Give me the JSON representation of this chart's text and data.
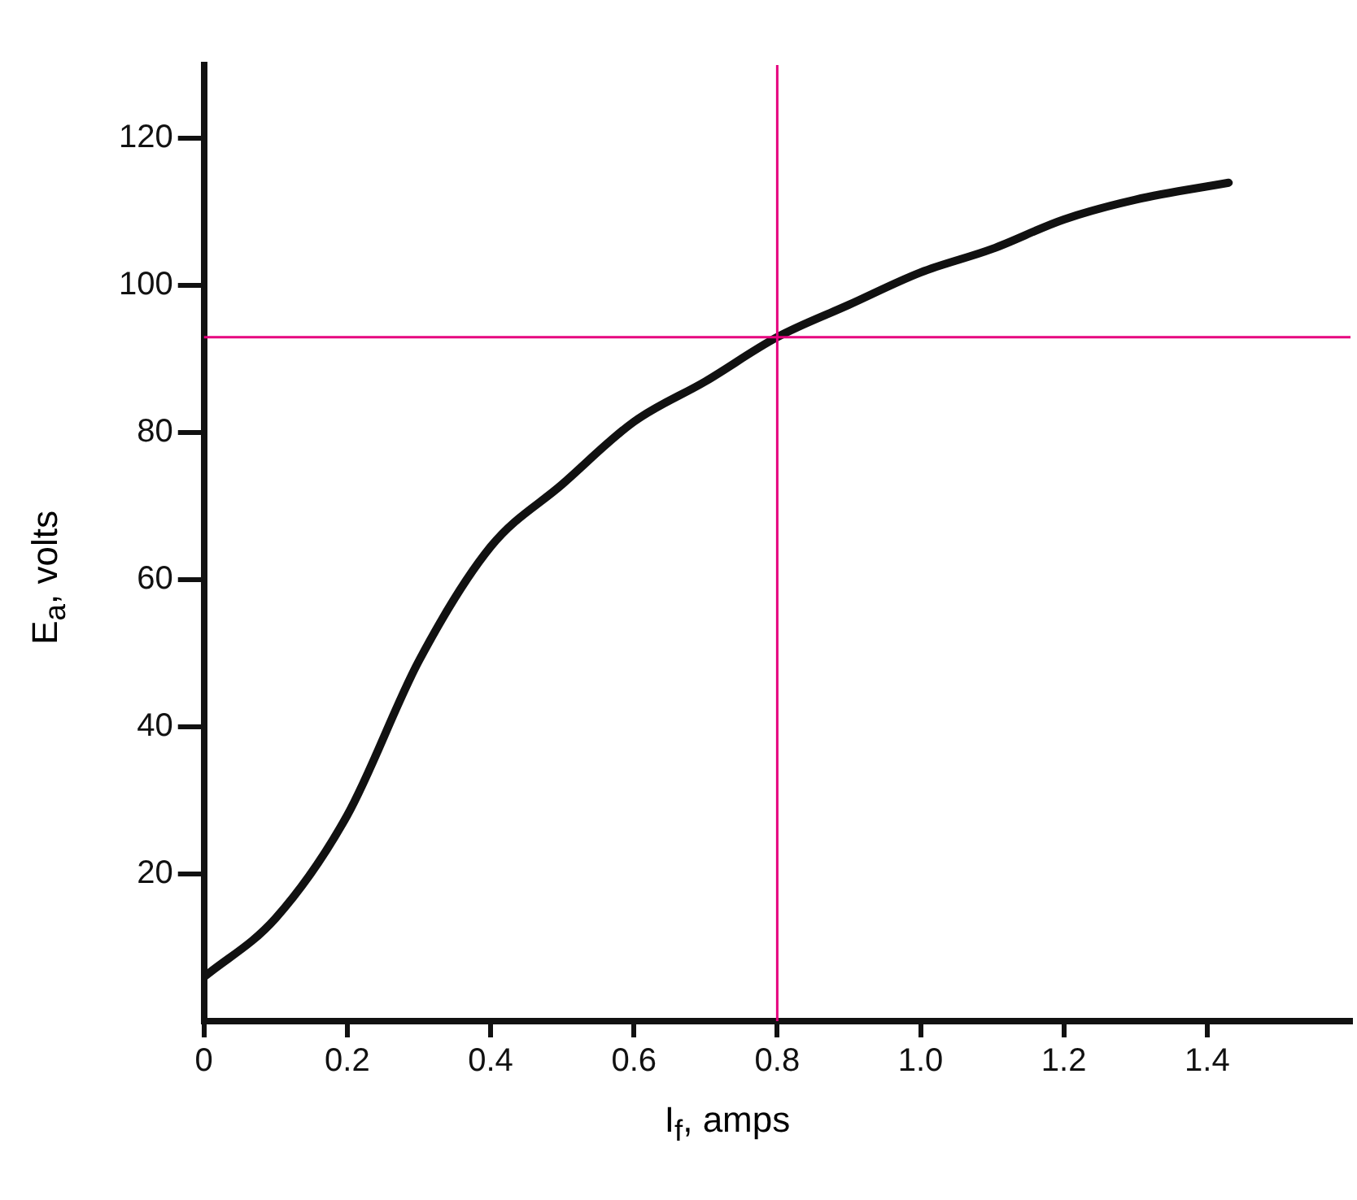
{
  "chart_data": {
    "type": "line",
    "xlabel": "I$_{f}$, amps",
    "ylabel": "E$_{a}$, volts",
    "x": [
      0,
      0.1,
      0.2,
      0.3,
      0.4,
      0.5,
      0.6,
      0.7,
      0.8,
      0.9,
      1.0,
      1.1,
      1.2,
      1.3,
      1.43
    ],
    "series": [
      {
        "color": "#111111",
        "values": [
          6,
          14,
          28,
          49,
          64.5,
          73,
          81.5,
          87,
          93,
          97.4,
          101.8,
          105,
          109,
          111.7,
          114
        ]
      }
    ],
    "xlim": [
      0,
      1.6
    ],
    "ylim": [
      0,
      130
    ],
    "xticks": [
      0,
      0.2,
      0.4,
      0.6,
      0.8,
      {
        "value": 1,
        "label": "1.0"
      },
      1.2,
      1.4
    ],
    "yticks": [
      20,
      40,
      60,
      80,
      100,
      120
    ],
    "ref_lines": [
      {
        "axis": "x",
        "value": 0.8,
        "color": "#e6007e"
      },
      {
        "axis": "y",
        "value": 93,
        "color": "#e6007e"
      }
    ],
    "grid": false,
    "legend": false,
    "marker": "none",
    "line_style": "solid"
  }
}
